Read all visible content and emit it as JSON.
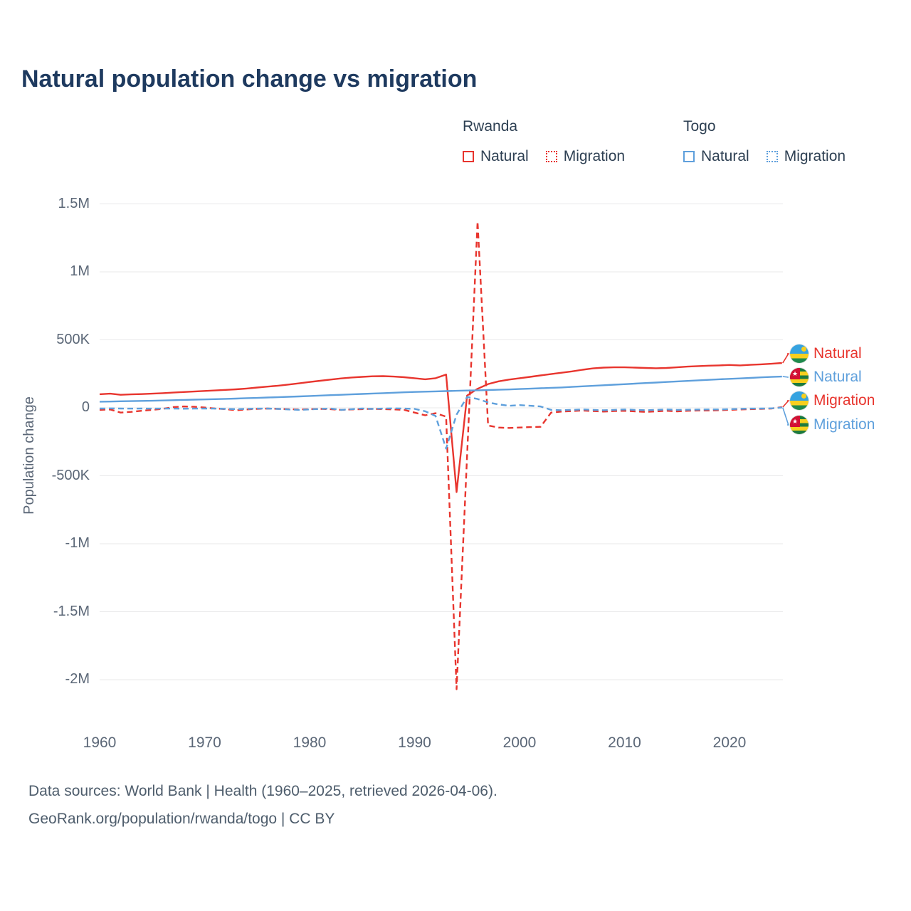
{
  "chart_data": {
    "type": "line",
    "title": "Natural population change vs migration",
    "ylabel": "Population change",
    "xlabel": "",
    "x_range": [
      1960,
      2025
    ],
    "ylim": [
      -2250000,
      1600000
    ],
    "grid": "horizontal",
    "units": "people per year (values_k are thousands)",
    "y_ticks": [
      {
        "label": "1.5M",
        "value": 1500000
      },
      {
        "label": "1M",
        "value": 1000000
      },
      {
        "label": "500K",
        "value": 500000
      },
      {
        "label": "0",
        "value": 0
      },
      {
        "label": "-500K",
        "value": -500000
      },
      {
        "label": "-1M",
        "value": -1000000
      },
      {
        "label": "-1.5M",
        "value": -1500000
      },
      {
        "label": "-2M",
        "value": -2000000
      }
    ],
    "x_ticks": [
      1960,
      1970,
      1980,
      1990,
      2000,
      2010,
      2020
    ],
    "legend": {
      "position": "top-right",
      "groups": [
        {
          "name": "Rwanda",
          "color": "red",
          "items": [
            {
              "label": "Natural",
              "style": "solid"
            },
            {
              "label": "Migration",
              "style": "dashed"
            }
          ]
        },
        {
          "name": "Togo",
          "color": "blue",
          "items": [
            {
              "label": "Natural",
              "style": "solid"
            },
            {
              "label": "Migration",
              "style": "dashed"
            }
          ]
        }
      ]
    },
    "end_labels": [
      {
        "label": "Natural",
        "flag": "rwanda",
        "color": "red",
        "series": "rwanda_natural"
      },
      {
        "label": "Natural",
        "flag": "togo",
        "color": "blue",
        "series": "togo_natural"
      },
      {
        "label": "Migration",
        "flag": "rwanda",
        "color": "red",
        "series": "rwanda_migration"
      },
      {
        "label": "Migration",
        "flag": "togo",
        "color": "blue",
        "series": "togo_migration"
      }
    ],
    "years": [
      1960,
      1961,
      1962,
      1963,
      1964,
      1965,
      1966,
      1967,
      1968,
      1969,
      1970,
      1971,
      1972,
      1973,
      1974,
      1975,
      1976,
      1977,
      1978,
      1979,
      1980,
      1981,
      1982,
      1983,
      1984,
      1985,
      1986,
      1987,
      1988,
      1989,
      1990,
      1991,
      1992,
      1993,
      1994,
      1995,
      1996,
      1997,
      1998,
      1999,
      2000,
      2001,
      2002,
      2003,
      2004,
      2005,
      2006,
      2007,
      2008,
      2009,
      2010,
      2011,
      2012,
      2013,
      2014,
      2015,
      2016,
      2017,
      2018,
      2019,
      2020,
      2021,
      2022,
      2023,
      2024,
      2025
    ],
    "series": [
      {
        "id": "rwanda_natural",
        "name": "Rwanda Natural",
        "color": "red",
        "style": "solid",
        "values_k": [
          100,
          104,
          96,
          99,
          101,
          104,
          108,
          112,
          116,
          120,
          124,
          128,
          132,
          136,
          142,
          149,
          156,
          163,
          171,
          180,
          190,
          199,
          208,
          216,
          223,
          228,
          232,
          233,
          230,
          225,
          218,
          210,
          218,
          245,
          -620,
          90,
          140,
          175,
          195,
          208,
          218,
          228,
          238,
          248,
          258,
          268,
          280,
          290,
          296,
          298,
          298,
          296,
          293,
          291,
          293,
          298,
          303,
          307,
          310,
          312,
          315,
          312,
          316,
          320,
          324,
          330
        ]
      },
      {
        "id": "rwanda_migration",
        "name": "Rwanda Migration",
        "color": "red",
        "style": "dashed",
        "values_k": [
          -15,
          -12,
          -35,
          -30,
          -22,
          -15,
          -8,
          5,
          10,
          8,
          2,
          -5,
          -10,
          -18,
          -12,
          -8,
          -5,
          -8,
          -10,
          -12,
          -10,
          -8,
          -10,
          -15,
          -12,
          -10,
          -8,
          -10,
          -12,
          -15,
          -35,
          -55,
          -40,
          -65,
          -2070,
          -350,
          1370,
          -130,
          -145,
          -148,
          -145,
          -142,
          -140,
          -35,
          -28,
          -24,
          -20,
          -24,
          -28,
          -24,
          -22,
          -26,
          -30,
          -26,
          -22,
          -26,
          -22,
          -20,
          -20,
          -18,
          -15,
          -12,
          -10,
          -8,
          -5,
          5
        ]
      },
      {
        "id": "togo_natural",
        "name": "Togo Natural",
        "color": "blue",
        "style": "solid",
        "values_k": [
          45,
          46,
          48,
          49,
          51,
          52,
          54,
          56,
          58,
          60,
          62,
          64,
          66,
          68,
          71,
          73,
          76,
          78,
          81,
          84,
          87,
          90,
          93,
          96,
          99,
          102,
          105,
          108,
          111,
          114,
          117,
          119,
          121,
          123,
          125,
          127,
          129,
          131,
          133,
          135,
          138,
          141,
          144,
          147,
          150,
          154,
          158,
          162,
          166,
          170,
          174,
          178,
          182,
          186,
          190,
          194,
          198,
          202,
          206,
          210,
          213,
          216,
          220,
          224,
          227,
          230
        ]
      },
      {
        "id": "togo_migration",
        "name": "Togo Migration",
        "color": "blue",
        "style": "dashed",
        "values_k": [
          -5,
          -4,
          -5,
          -6,
          -5,
          -6,
          -5,
          -6,
          -7,
          -6,
          -5,
          -6,
          -8,
          -10,
          -8,
          -6,
          -5,
          -8,
          -12,
          -15,
          -12,
          -8,
          -5,
          -15,
          -10,
          -5,
          -8,
          -5,
          -4,
          -5,
          -8,
          -25,
          -60,
          -300,
          -50,
          80,
          65,
          40,
          25,
          15,
          20,
          15,
          10,
          -15,
          -18,
          -15,
          -12,
          -15,
          -18,
          -15,
          -12,
          -15,
          -18,
          -15,
          -12,
          -15,
          -14,
          -13,
          -12,
          -12,
          -10,
          -8,
          -6,
          -5,
          -4,
          2
        ]
      }
    ]
  },
  "colors": {
    "red": "#e8352e",
    "blue": "#5fa0dc",
    "grid": "#e8e8ea",
    "title": "#1e3a5f",
    "legend_text": "#2e4053",
    "tick_text": "#5b6777",
    "footer_text": "#4e5d6c"
  },
  "footer": {
    "line1": "Data sources: World Bank | Health (1960–2025, retrieved 2026-04-06).",
    "line2": "GeoRank.org/population/rwanda/togo | CC BY"
  }
}
